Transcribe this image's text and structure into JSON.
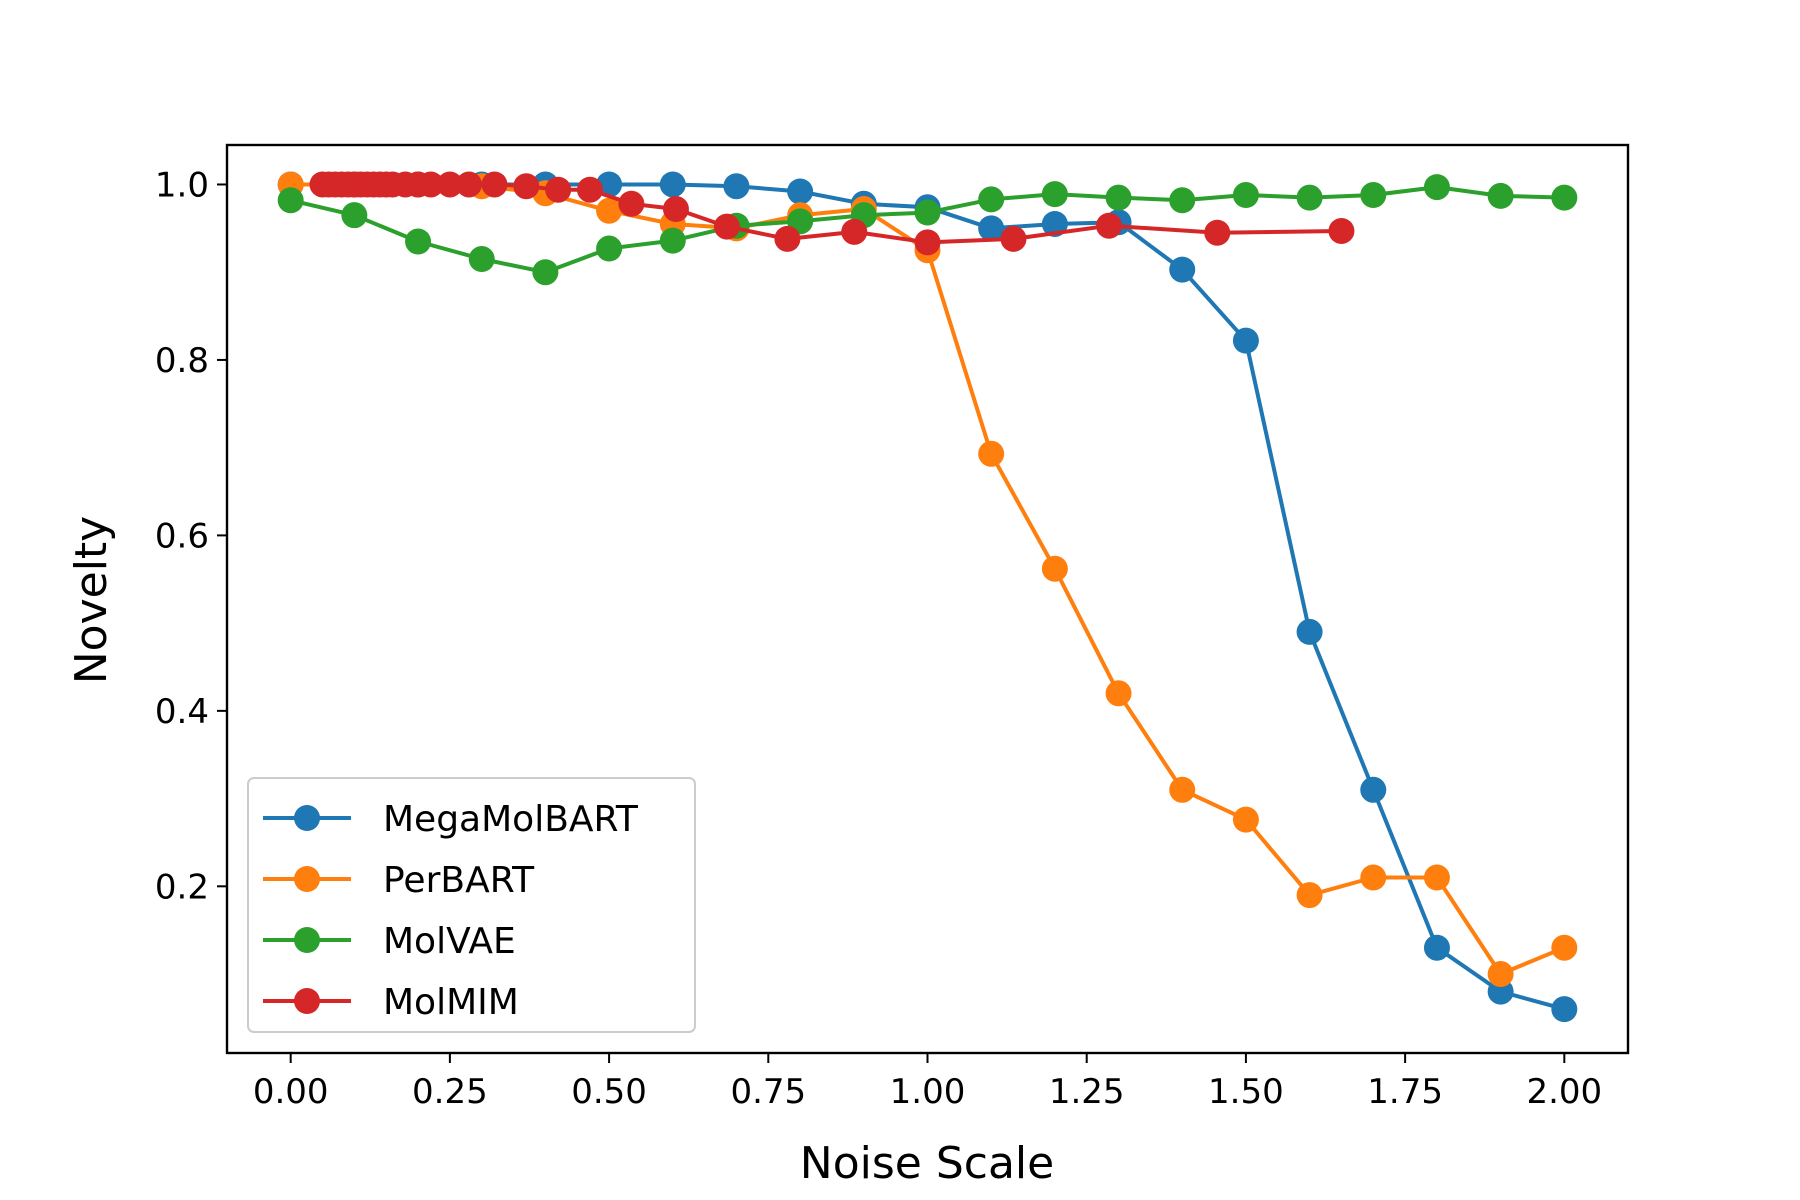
{
  "chart_data": {
    "type": "line",
    "title": "",
    "xlabel": "Noise Scale",
    "ylabel": "Novelty",
    "xlim": [
      -0.1,
      2.1
    ],
    "ylim": [
      0.01,
      1.045
    ],
    "xticks": [
      0.0,
      0.25,
      0.5,
      0.75,
      1.0,
      1.25,
      1.5,
      1.75,
      2.0
    ],
    "xtick_labels": [
      "0.00",
      "0.25",
      "0.50",
      "0.75",
      "1.00",
      "1.25",
      "1.50",
      "1.75",
      "2.00"
    ],
    "yticks": [
      0.2,
      0.4,
      0.6,
      0.8,
      1.0
    ],
    "ytick_labels": [
      "0.2",
      "0.4",
      "0.6",
      "0.8",
      "1.0"
    ],
    "grid": false,
    "legend_position": "lower-left",
    "marker": "circle",
    "series": [
      {
        "name": "MegaMolBART",
        "color": "#1f77b4",
        "x": [
          0.0,
          0.1,
          0.2,
          0.3,
          0.4,
          0.5,
          0.6,
          0.7,
          0.8,
          0.9,
          1.0,
          1.1,
          1.2,
          1.3,
          1.4,
          1.5,
          1.6,
          1.7,
          1.8,
          1.9,
          2.0
        ],
        "y": [
          1.0,
          1.0,
          1.0,
          1.0,
          1.0,
          1.0,
          1.0,
          0.998,
          0.992,
          0.978,
          0.974,
          0.95,
          0.955,
          0.957,
          0.903,
          0.822,
          0.49,
          0.31,
          0.13,
          0.08,
          0.06
        ]
      },
      {
        "name": "PerBART",
        "color": "#ff7f0e",
        "x": [
          0.0,
          0.1,
          0.2,
          0.3,
          0.4,
          0.5,
          0.6,
          0.7,
          0.8,
          0.9,
          1.0,
          1.1,
          1.2,
          1.3,
          1.4,
          1.5,
          1.6,
          1.7,
          1.8,
          1.9,
          2.0
        ],
        "y": [
          1.0,
          1.0,
          1.0,
          0.998,
          0.99,
          0.97,
          0.955,
          0.95,
          0.965,
          0.972,
          0.925,
          0.693,
          0.562,
          0.42,
          0.31,
          0.276,
          0.19,
          0.21,
          0.21,
          0.1,
          0.13
        ]
      },
      {
        "name": "MolVAE",
        "color": "#2ca02c",
        "x": [
          0.0,
          0.1,
          0.2,
          0.3,
          0.4,
          0.5,
          0.6,
          0.7,
          0.8,
          0.9,
          1.0,
          1.1,
          1.2,
          1.3,
          1.4,
          1.5,
          1.6,
          1.7,
          1.8,
          1.9,
          2.0
        ],
        "y": [
          0.982,
          0.965,
          0.935,
          0.915,
          0.9,
          0.927,
          0.936,
          0.953,
          0.958,
          0.965,
          0.968,
          0.983,
          0.989,
          0.985,
          0.982,
          0.988,
          0.985,
          0.988,
          0.997,
          0.987,
          0.985
        ]
      },
      {
        "name": "MolMIM",
        "color": "#d62728",
        "x": [
          0.05,
          0.06,
          0.07,
          0.08,
          0.09,
          0.1,
          0.11,
          0.12,
          0.13,
          0.14,
          0.15,
          0.16,
          0.18,
          0.2,
          0.22,
          0.25,
          0.28,
          0.32,
          0.37,
          0.42,
          0.47,
          0.535,
          0.605,
          0.685,
          0.78,
          0.885,
          1.0,
          1.135,
          1.285,
          1.455,
          1.65
        ],
        "y": [
          1.0,
          1.0,
          1.0,
          1.0,
          1.0,
          1.0,
          1.0,
          1.0,
          1.0,
          1.0,
          1.0,
          1.0,
          1.0,
          1.0,
          1.0,
          1.0,
          1.0,
          1.0,
          0.998,
          0.994,
          0.994,
          0.978,
          0.972,
          0.952,
          0.938,
          0.946,
          0.934,
          0.938,
          0.953,
          0.945,
          0.947
        ]
      }
    ]
  }
}
